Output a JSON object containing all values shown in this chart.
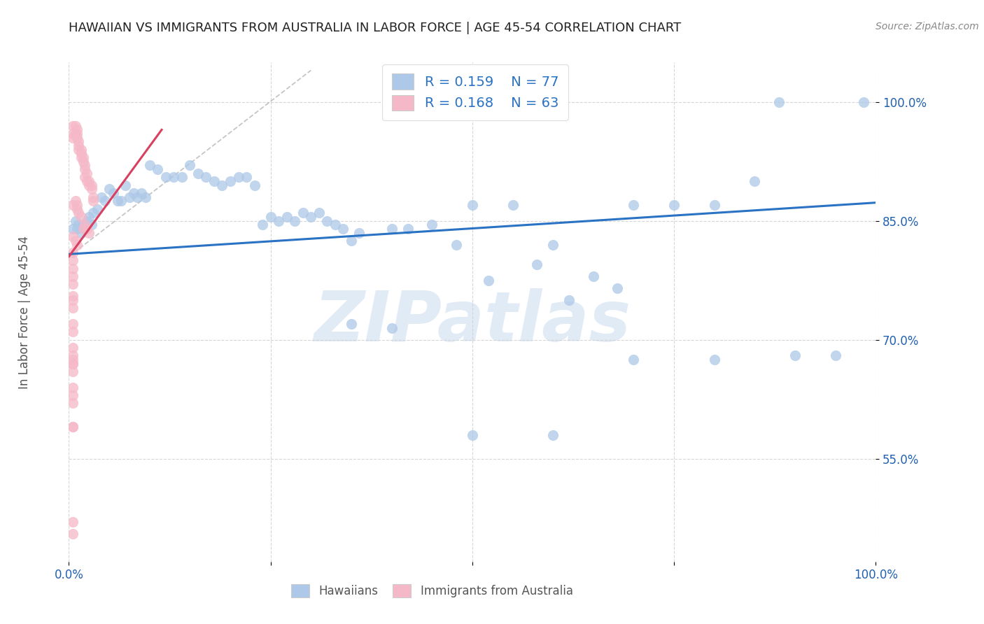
{
  "title": "HAWAIIAN VS IMMIGRANTS FROM AUSTRALIA IN LABOR FORCE | AGE 45-54 CORRELATION CHART",
  "source": "Source: ZipAtlas.com",
  "ylabel": "In Labor Force | Age 45-54",
  "xlim": [
    0.0,
    1.0
  ],
  "ylim": [
    0.42,
    1.05
  ],
  "ytick_labels": [
    "55.0%",
    "70.0%",
    "85.0%",
    "100.0%"
  ],
  "ytick_positions": [
    0.55,
    0.7,
    0.85,
    1.0
  ],
  "legend1_label": "Hawaiians",
  "legend2_label": "Immigrants from Australia",
  "R1": "0.159",
  "N1": "77",
  "R2": "0.168",
  "N2": "63",
  "blue_scatter_color": "#adc8e8",
  "pink_scatter_color": "#f5b8c8",
  "blue_line_color": "#2a72c3",
  "pink_line_color": "#d94060",
  "dash_line_color": "#bbbbbb",
  "tick_color": "#2060b0",
  "grid_color": "#cccccc",
  "watermark_color": "#c5d8ef",
  "blue_line_x0": 0.0,
  "blue_line_y0": 0.808,
  "blue_line_x1": 1.0,
  "blue_line_y1": 0.873,
  "pink_line_x0": 0.0,
  "pink_line_y0": 0.805,
  "pink_line_x1": 0.115,
  "pink_line_y1": 0.965,
  "dash_line_x0": 0.0,
  "dash_line_y0": 0.805,
  "dash_line_x1": 0.3,
  "dash_line_y1": 1.04,
  "hawaiians_x": [
    0.005,
    0.008,
    0.01,
    0.012,
    0.015,
    0.018,
    0.02,
    0.022,
    0.025,
    0.028,
    0.03,
    0.035,
    0.04,
    0.045,
    0.05,
    0.055,
    0.06,
    0.065,
    0.07,
    0.075,
    0.08,
    0.085,
    0.09,
    0.095,
    0.1,
    0.11,
    0.12,
    0.13,
    0.14,
    0.15,
    0.16,
    0.17,
    0.18,
    0.19,
    0.2,
    0.21,
    0.22,
    0.23,
    0.24,
    0.25,
    0.26,
    0.27,
    0.28,
    0.29,
    0.3,
    0.31,
    0.32,
    0.33,
    0.34,
    0.35,
    0.36,
    0.4,
    0.42,
    0.45,
    0.48,
    0.5,
    0.52,
    0.55,
    0.58,
    0.6,
    0.62,
    0.65,
    0.68,
    0.7,
    0.75,
    0.8,
    0.85,
    0.88,
    0.9,
    0.95,
    0.985,
    0.35,
    0.4,
    0.5,
    0.6,
    0.7,
    0.8
  ],
  "hawaiians_y": [
    0.84,
    0.85,
    0.84,
    0.845,
    0.835,
    0.845,
    0.84,
    0.85,
    0.855,
    0.845,
    0.86,
    0.865,
    0.88,
    0.875,
    0.89,
    0.885,
    0.875,
    0.875,
    0.895,
    0.88,
    0.885,
    0.88,
    0.885,
    0.88,
    0.92,
    0.915,
    0.905,
    0.905,
    0.905,
    0.92,
    0.91,
    0.905,
    0.9,
    0.895,
    0.9,
    0.905,
    0.905,
    0.895,
    0.845,
    0.855,
    0.85,
    0.855,
    0.85,
    0.86,
    0.855,
    0.86,
    0.85,
    0.845,
    0.84,
    0.825,
    0.835,
    0.84,
    0.84,
    0.845,
    0.82,
    0.87,
    0.775,
    0.87,
    0.795,
    0.82,
    0.75,
    0.78,
    0.765,
    0.87,
    0.87,
    0.87,
    0.9,
    1.0,
    0.68,
    0.68,
    1.0,
    0.72,
    0.715,
    0.58,
    0.58,
    0.675,
    0.675
  ],
  "immigrants_x": [
    0.005,
    0.005,
    0.005,
    0.008,
    0.008,
    0.01,
    0.01,
    0.01,
    0.012,
    0.012,
    0.012,
    0.015,
    0.015,
    0.015,
    0.018,
    0.018,
    0.02,
    0.02,
    0.02,
    0.022,
    0.022,
    0.025,
    0.025,
    0.028,
    0.028,
    0.03,
    0.03,
    0.005,
    0.008,
    0.01,
    0.01,
    0.012,
    0.015,
    0.018,
    0.02,
    0.022,
    0.025,
    0.005,
    0.008,
    0.01,
    0.005,
    0.005,
    0.005,
    0.005,
    0.005,
    0.005,
    0.005,
    0.005,
    0.005,
    0.005,
    0.005,
    0.005,
    0.005,
    0.005,
    0.005,
    0.005,
    0.005,
    0.005,
    0.005,
    0.005,
    0.005,
    0.005,
    0.005
  ],
  "immigrants_y": [
    0.97,
    0.96,
    0.955,
    0.96,
    0.97,
    0.96,
    0.955,
    0.965,
    0.94,
    0.95,
    0.945,
    0.935,
    0.94,
    0.93,
    0.93,
    0.925,
    0.92,
    0.915,
    0.905,
    0.9,
    0.91,
    0.895,
    0.9,
    0.895,
    0.89,
    0.875,
    0.88,
    0.87,
    0.875,
    0.87,
    0.865,
    0.86,
    0.855,
    0.84,
    0.845,
    0.84,
    0.835,
    0.83,
    0.825,
    0.82,
    0.81,
    0.8,
    0.79,
    0.78,
    0.77,
    0.755,
    0.75,
    0.74,
    0.72,
    0.71,
    0.69,
    0.68,
    0.67,
    0.66,
    0.64,
    0.63,
    0.62,
    0.59,
    0.59,
    0.675,
    0.67,
    0.47,
    0.455
  ]
}
